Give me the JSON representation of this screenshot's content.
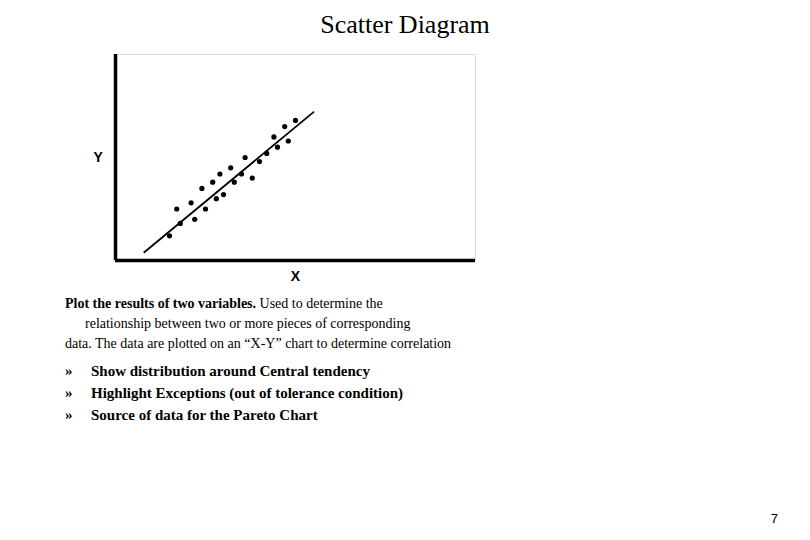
{
  "chart_data": {
    "type": "scatter",
    "title": "Scatter Diagram",
    "x_label": "X",
    "y_label": "Y",
    "xlim": [
      0,
      1.0
    ],
    "ylim": [
      0,
      1.0
    ],
    "xticks": [],
    "yticks": [],
    "tick_labels": false,
    "series": [
      {
        "type": "scatter",
        "color": "#000000",
        "marker": "circle",
        "x": [
          0.15,
          0.18,
          0.17,
          0.22,
          0.21,
          0.25,
          0.24,
          0.28,
          0.27,
          0.3,
          0.29,
          0.33,
          0.32,
          0.35,
          0.38,
          0.36,
          0.4,
          0.42,
          0.45,
          0.44,
          0.48,
          0.47,
          0.5
        ],
        "values": [
          0.12,
          0.18,
          0.25,
          0.2,
          0.28,
          0.25,
          0.35,
          0.3,
          0.38,
          0.32,
          0.42,
          0.38,
          0.45,
          0.42,
          0.4,
          0.5,
          0.48,
          0.52,
          0.55,
          0.6,
          0.58,
          0.65,
          0.68
        ]
      },
      {
        "type": "line",
        "color": "#000000",
        "line_style": "solid",
        "x": [
          0.08,
          0.55
        ],
        "values": [
          0.04,
          0.72
        ]
      }
    ],
    "annotations": {
      "lead": "Plot the results of two variables.",
      "text": [
        "Used to determine the",
        "relationship between two or more pieces of corresponding",
        "data. The data are plotted on an “X-Y” chart to determine correlation"
      ],
      "bullet": "»",
      "bullets": [
        "Show distribution around Central tendency",
        "Highlight Exceptions (out of tolerance condition)",
        "Source of data for the Pareto Chart"
      ],
      "page": "7"
    }
  }
}
